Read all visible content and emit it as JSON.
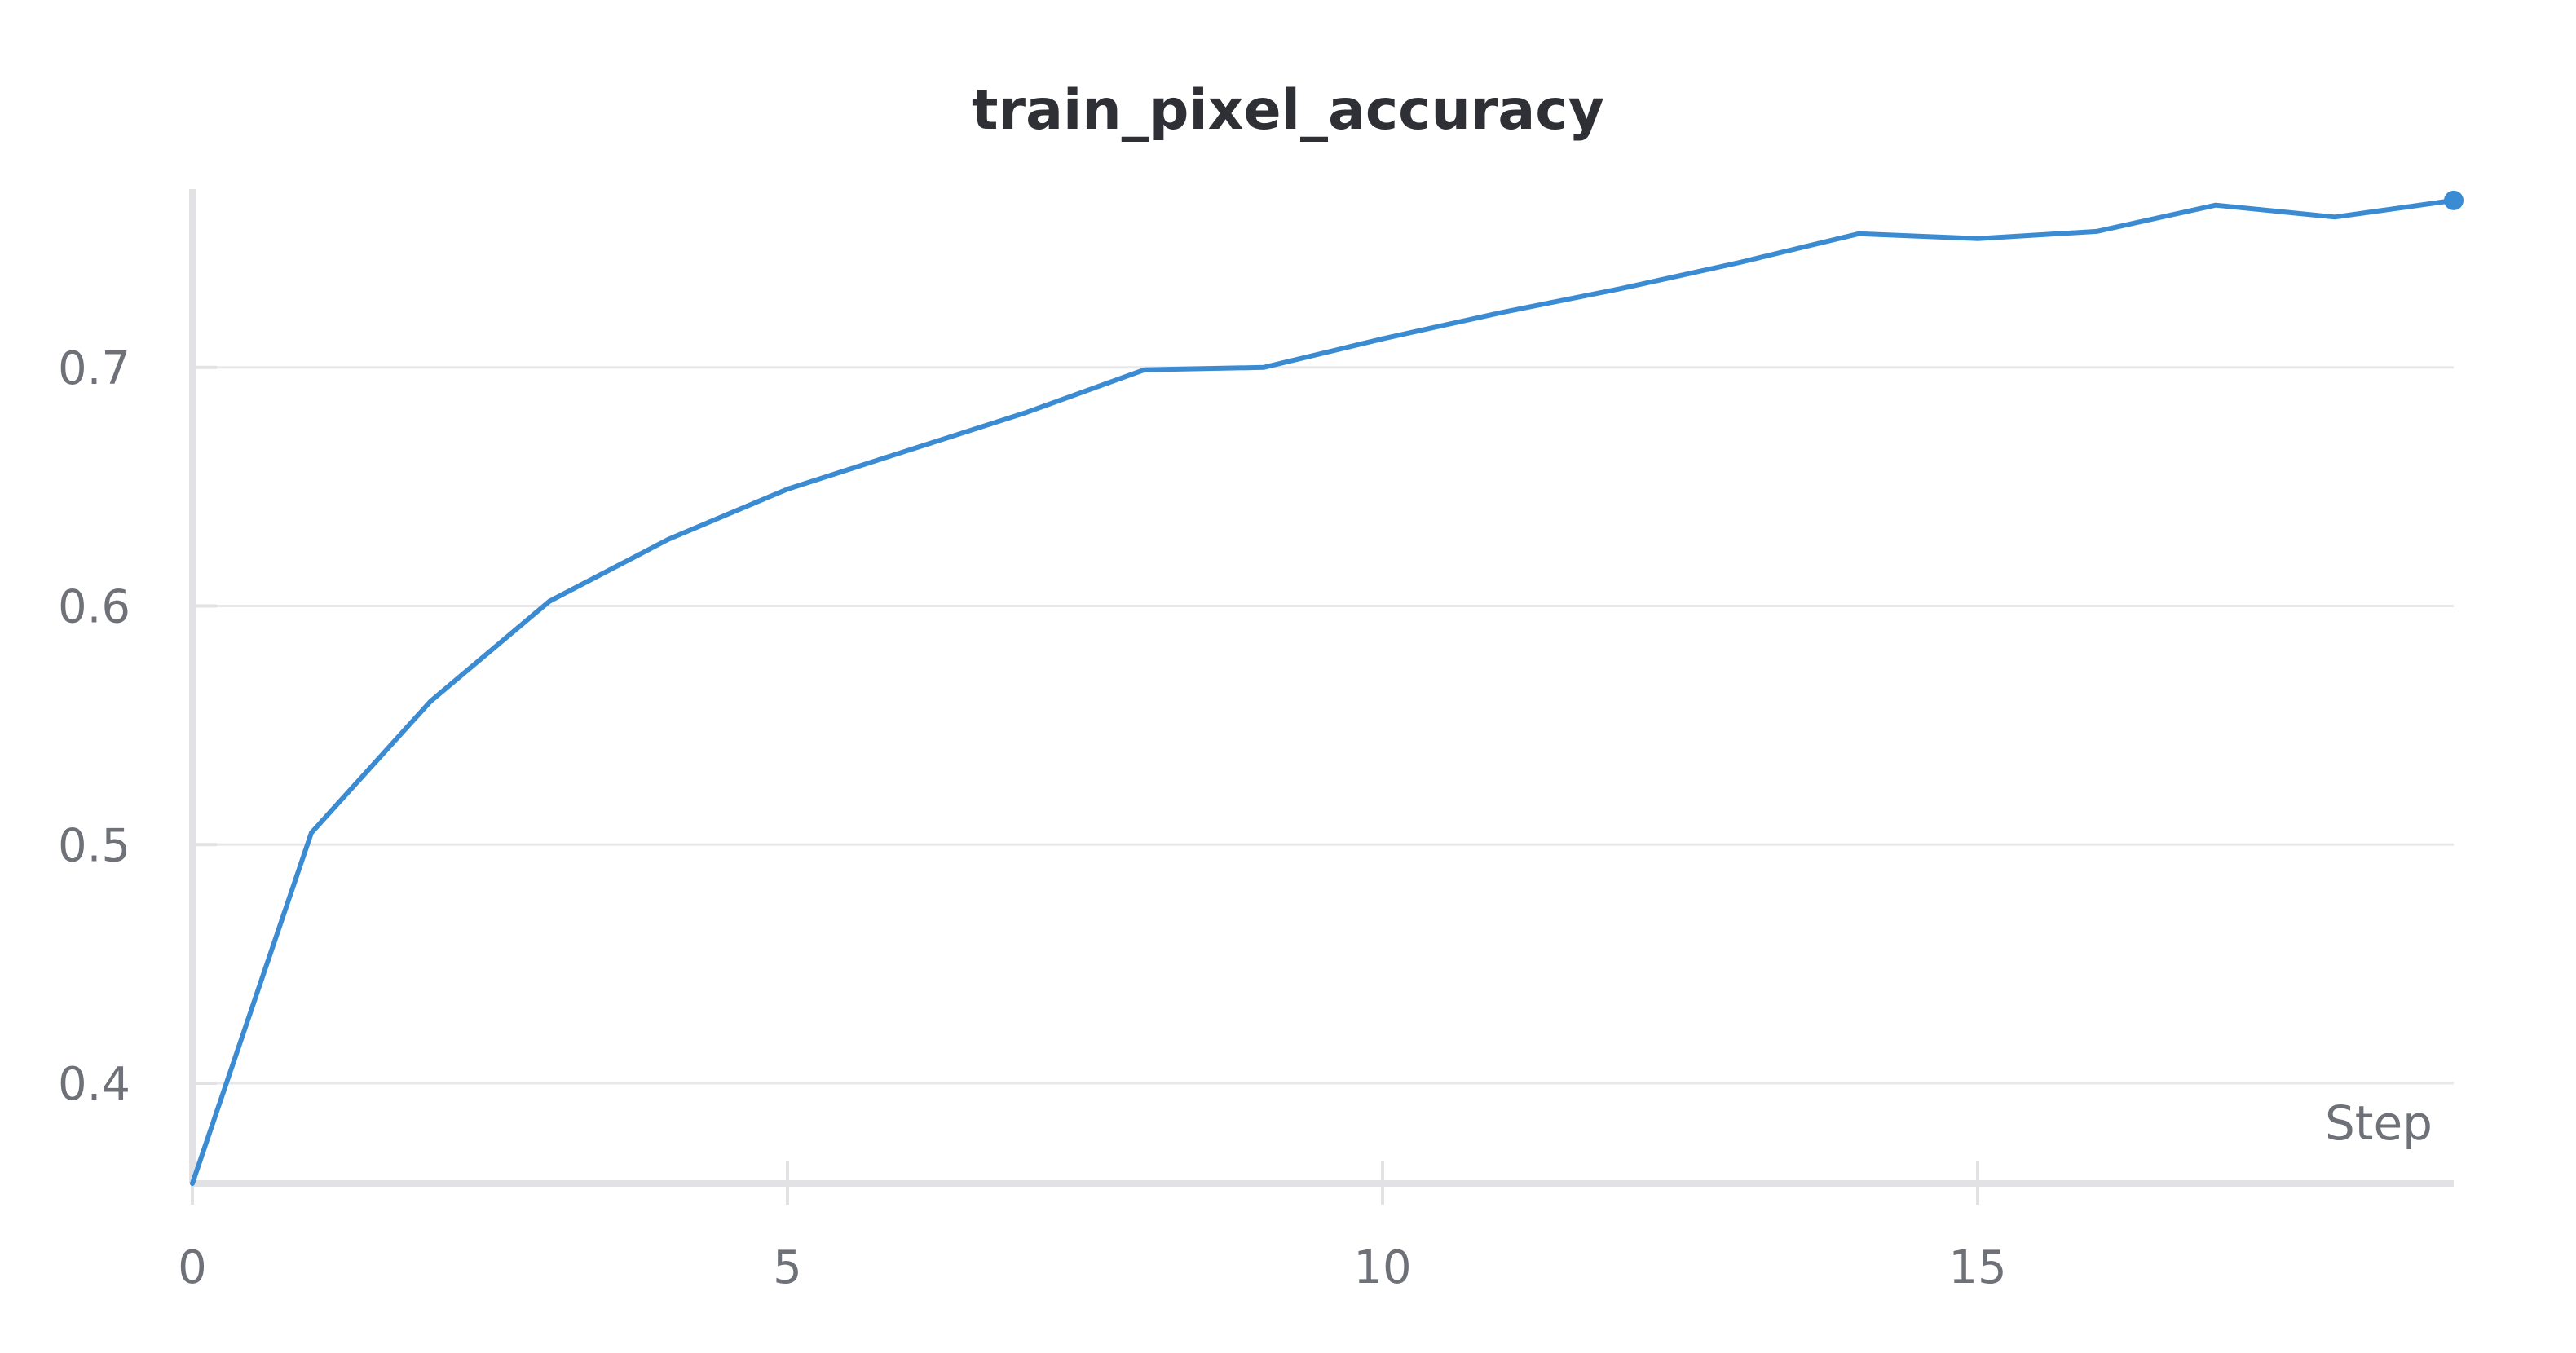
{
  "chart_data": {
    "type": "line",
    "title": "train_pixel_accuracy",
    "xlabel": "Step",
    "ylabel": "",
    "xlim": [
      0,
      19
    ],
    "ylim": [
      0.358,
      0.772
    ],
    "xticks": [
      0,
      5,
      10,
      15
    ],
    "yticks": [
      0.4,
      0.5,
      0.6,
      0.7
    ],
    "x_tick_labels": [
      "0",
      "5",
      "10",
      "15"
    ],
    "y_tick_labels": [
      "0.4",
      "0.5",
      "0.6",
      "0.7"
    ],
    "grid": true,
    "legend": "none",
    "colors": {
      "line": "#3a8bd2",
      "grid": "#e8e8ea",
      "axis": "#e2e2e4",
      "title": "#2f3035",
      "tick_text": "#6f7178"
    },
    "series": [
      {
        "x": [
          0,
          1,
          2,
          3,
          4,
          5,
          6,
          7,
          8,
          9,
          10,
          11,
          12,
          13,
          14,
          15,
          16,
          17,
          18,
          19
        ],
        "values": [
          0.358,
          0.505,
          0.56,
          0.602,
          0.628,
          0.649,
          0.665,
          0.681,
          0.699,
          0.7,
          0.712,
          0.723,
          0.733,
          0.744,
          0.756,
          0.754,
          0.757,
          0.768,
          0.763,
          0.77
        ]
      }
    ],
    "end_marker": true
  }
}
